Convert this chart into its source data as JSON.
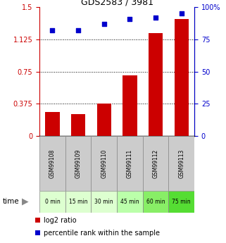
{
  "title": "GDS2583 / 3981",
  "categories": [
    "GSM99108",
    "GSM99109",
    "GSM99110",
    "GSM99111",
    "GSM99112",
    "GSM99113"
  ],
  "time_labels": [
    "0 min",
    "15 min",
    "30 min",
    "45 min",
    "60 min",
    "75 min"
  ],
  "time_colors": [
    "#ddffd0",
    "#ddffd0",
    "#ddffd0",
    "#bbffaa",
    "#88ee66",
    "#55dd33"
  ],
  "log2_ratio": [
    0.28,
    0.255,
    0.38,
    0.71,
    1.2,
    1.36
  ],
  "percentile_rank": [
    82,
    82,
    87,
    91,
    92,
    95
  ],
  "bar_color": "#cc0000",
  "square_color": "#0000cc",
  "ylim_left": [
    0,
    1.5
  ],
  "ylim_right": [
    0,
    100
  ],
  "yticks_left": [
    0,
    0.375,
    0.75,
    1.125,
    1.5
  ],
  "ytick_labels_left": [
    "0",
    "0.375",
    "0.75",
    "1.125",
    "1.5"
  ],
  "yticks_right": [
    0,
    25,
    50,
    75,
    100
  ],
  "ytick_labels_right": [
    "0",
    "25",
    "50",
    "75",
    "100%"
  ],
  "hlines": [
    0.375,
    0.75,
    1.125
  ],
  "gsm_bg": "#cccccc",
  "legend_log2": "log2 ratio",
  "legend_pct": "percentile rank within the sample"
}
